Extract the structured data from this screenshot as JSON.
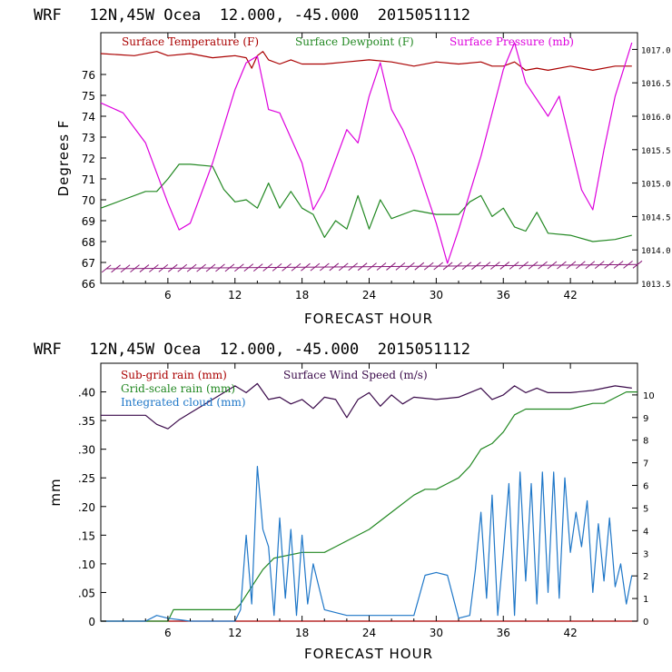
{
  "chart_data": [
    {
      "type": "line",
      "title": "WRF   12N,45W Ocea  12.000, -45.000  2015051112",
      "xlabel": "FORECAST HOUR",
      "ylabel": "Degrees F",
      "xlim": [
        0,
        48
      ],
      "ylim": [
        66,
        78
      ],
      "x_ticks": [
        "6",
        "12",
        "18",
        "24",
        "30",
        "36",
        "42"
      ],
      "y_ticks": [
        "66",
        "67",
        "68",
        "69",
        "70",
        "71",
        "72",
        "73",
        "74",
        "75",
        "76"
      ],
      "right_axis": {
        "ylim": [
          1013.5,
          1017.25
        ],
        "ticks": [
          "1013.5",
          "1014.0",
          "1014.5",
          "1015.0",
          "1015.5",
          "1016.0",
          "1016.5",
          "1017.0"
        ]
      },
      "series": [
        {
          "name": "Surface Temperature (F)",
          "color": "#aa0000",
          "axis": "left",
          "x": [
            0,
            3,
            5,
            6,
            8,
            10,
            12,
            13,
            13.5,
            14,
            14.5,
            15,
            16,
            17,
            18,
            20,
            22,
            24,
            26,
            28,
            30,
            32,
            34,
            35,
            36,
            37,
            38,
            39,
            40,
            42,
            44,
            46,
            47.5
          ],
          "y": [
            77.0,
            76.9,
            77.1,
            76.9,
            77.0,
            76.8,
            76.9,
            76.8,
            76.3,
            76.9,
            77.1,
            76.7,
            76.5,
            76.7,
            76.5,
            76.5,
            76.6,
            76.7,
            76.6,
            76.4,
            76.6,
            76.5,
            76.6,
            76.4,
            76.4,
            76.6,
            76.2,
            76.3,
            76.2,
            76.4,
            76.2,
            76.4,
            76.4
          ]
        },
        {
          "name": "Surface Dewpoint (F)",
          "color": "#228822",
          "axis": "left",
          "x": [
            0,
            2,
            4,
            5,
            6,
            7,
            8,
            10,
            11,
            12,
            13,
            14,
            15,
            16,
            17,
            18,
            19,
            20,
            21,
            22,
            23,
            24,
            25,
            26,
            28,
            30,
            32,
            33,
            34,
            35,
            36,
            37,
            38,
            39,
            40,
            42,
            44,
            46,
            47.5
          ],
          "y": [
            69.6,
            70.0,
            70.4,
            70.4,
            71.0,
            71.7,
            71.7,
            71.6,
            70.5,
            69.9,
            70.0,
            69.6,
            70.8,
            69.6,
            70.4,
            69.6,
            69.3,
            68.2,
            69.0,
            68.6,
            70.2,
            68.6,
            70.0,
            69.1,
            69.5,
            69.3,
            69.3,
            69.9,
            70.2,
            69.2,
            69.6,
            68.7,
            68.5,
            69.4,
            68.4,
            68.3,
            68.0,
            68.1,
            68.3
          ]
        },
        {
          "name": "Surface Pressure (mb)",
          "color": "#dd00dd",
          "axis": "right",
          "x": [
            0,
            2,
            4,
            6,
            7,
            8,
            10,
            12,
            13,
            14,
            15,
            16,
            18,
            19,
            20,
            22,
            23,
            24,
            25,
            26,
            27,
            28,
            30,
            31,
            32,
            34,
            36,
            37,
            38,
            40,
            41,
            42,
            43,
            44,
            45,
            46,
            47.5
          ],
          "y": [
            1016.2,
            1016.05,
            1015.6,
            1014.7,
            1014.3,
            1014.4,
            1015.3,
            1016.4,
            1016.8,
            1016.9,
            1016.1,
            1016.05,
            1015.3,
            1014.6,
            1014.9,
            1015.8,
            1015.6,
            1016.3,
            1016.8,
            1016.1,
            1015.8,
            1015.4,
            1014.4,
            1013.8,
            1014.3,
            1015.4,
            1016.7,
            1017.1,
            1016.5,
            1016.0,
            1016.3,
            1015.6,
            1014.9,
            1014.6,
            1015.5,
            1016.3,
            1017.1
          ]
        },
        {
          "name": "wind barbs",
          "color": "#8a1a7a",
          "axis": "left",
          "x": [
            0.5,
            48
          ],
          "y": [
            66.7,
            66.9
          ]
        }
      ],
      "legend": [
        "Surface Temperature (F)",
        "Surface Dewpoint (F)",
        "Surface Pressure (mb)"
      ]
    },
    {
      "type": "line",
      "title": "WRF   12N,45W Ocea  12.000, -45.000  2015051112",
      "xlabel": "FORECAST HOUR",
      "ylabel": "mm",
      "xlim": [
        0,
        48
      ],
      "ylim": [
        0,
        0.45
      ],
      "x_ticks": [
        "6",
        "12",
        "18",
        "24",
        "30",
        "36",
        "42"
      ],
      "y_ticks": [
        "0",
        ".05",
        ".10",
        ".15",
        ".20",
        ".25",
        ".30",
        ".35",
        ".40"
      ],
      "right_axis": {
        "ylim": [
          0,
          11.4
        ],
        "ticks": [
          "0",
          "1",
          "2",
          "3",
          "4",
          "5",
          "6",
          "7",
          "8",
          "9",
          "10"
        ]
      },
      "series": [
        {
          "name": "Sub-grid rain (mm)",
          "color": "#aa0000",
          "axis": "left",
          "x": [
            0,
            48
          ],
          "y": [
            0,
            0
          ]
        },
        {
          "name": "Grid-scale rain (mm)",
          "color": "#228822",
          "axis": "left",
          "x": [
            0,
            6,
            6.5,
            12,
            12.5,
            13.5,
            14.5,
            15.5,
            18,
            20,
            21,
            22,
            24,
            26,
            28,
            29,
            30,
            31,
            32,
            33,
            34,
            35,
            36,
            37,
            38,
            40,
            42,
            44,
            45,
            46,
            47,
            48
          ],
          "y": [
            0,
            0,
            0.02,
            0.02,
            0.03,
            0.06,
            0.09,
            0.11,
            0.12,
            0.12,
            0.13,
            0.14,
            0.16,
            0.19,
            0.22,
            0.23,
            0.23,
            0.24,
            0.25,
            0.27,
            0.3,
            0.31,
            0.33,
            0.36,
            0.37,
            0.37,
            0.37,
            0.38,
            0.38,
            0.39,
            0.4,
            0.4
          ]
        },
        {
          "name": "Integrated cloud (mm)",
          "color": "#1f77c8",
          "axis": "left",
          "x": [
            0,
            4,
            5,
            6,
            8,
            10,
            12,
            12.5,
            13,
            13.5,
            14,
            14.5,
            15,
            15.5,
            16,
            16.5,
            17,
            17.5,
            18,
            18.5,
            19,
            20,
            22,
            24,
            26,
            28,
            29,
            30,
            31,
            32,
            33,
            33.5,
            34,
            34.5,
            35,
            35.5,
            36,
            36.5,
            37,
            37.5,
            38,
            38.5,
            39,
            39.5,
            40,
            40.5,
            41,
            41.5,
            42,
            42.5,
            43,
            43.5,
            44,
            44.5,
            45,
            45.5,
            46,
            46.5,
            47,
            47.5
          ],
          "y": [
            0,
            0,
            0.01,
            0.005,
            0,
            0,
            0,
            0.02,
            0.15,
            0.03,
            0.27,
            0.16,
            0.13,
            0.01,
            0.18,
            0.04,
            0.16,
            0.01,
            0.15,
            0.03,
            0.1,
            0.02,
            0.01,
            0.01,
            0.01,
            0.01,
            0.08,
            0.085,
            0.08,
            0.005,
            0.01,
            0.09,
            0.19,
            0.04,
            0.22,
            0.01,
            0.12,
            0.24,
            0.01,
            0.26,
            0.07,
            0.24,
            0.03,
            0.26,
            0.05,
            0.26,
            0.04,
            0.25,
            0.12,
            0.19,
            0.13,
            0.21,
            0.05,
            0.17,
            0.07,
            0.18,
            0.06,
            0.1,
            0.03,
            0.08
          ]
        },
        {
          "name": "Surface Wind Speed (m/s)",
          "color": "#3a0a4a",
          "axis": "right",
          "x": [
            0,
            2,
            4,
            5,
            6,
            7,
            8,
            10,
            12,
            13,
            14,
            15,
            16,
            17,
            18,
            19,
            20,
            21,
            22,
            23,
            24,
            25,
            26,
            27,
            28,
            30,
            32,
            33,
            34,
            35,
            36,
            37,
            38,
            39,
            40,
            42,
            44,
            46,
            47.5
          ],
          "y": [
            9.1,
            9.1,
            9.1,
            8.7,
            8.5,
            8.9,
            9.2,
            9.8,
            10.4,
            10.1,
            10.5,
            9.8,
            9.9,
            9.6,
            9.8,
            9.4,
            9.9,
            9.8,
            9.0,
            9.8,
            10.1,
            9.5,
            10.0,
            9.6,
            9.9,
            9.8,
            9.9,
            10.1,
            10.3,
            9.8,
            10.0,
            10.4,
            10.1,
            10.3,
            10.1,
            10.1,
            10.2,
            10.4,
            10.3
          ]
        }
      ],
      "legend": [
        "Sub-grid rain (mm)",
        "Grid-scale rain (mm)",
        "Integrated cloud (mm)",
        "Surface Wind Speed (m/s)"
      ]
    }
  ]
}
